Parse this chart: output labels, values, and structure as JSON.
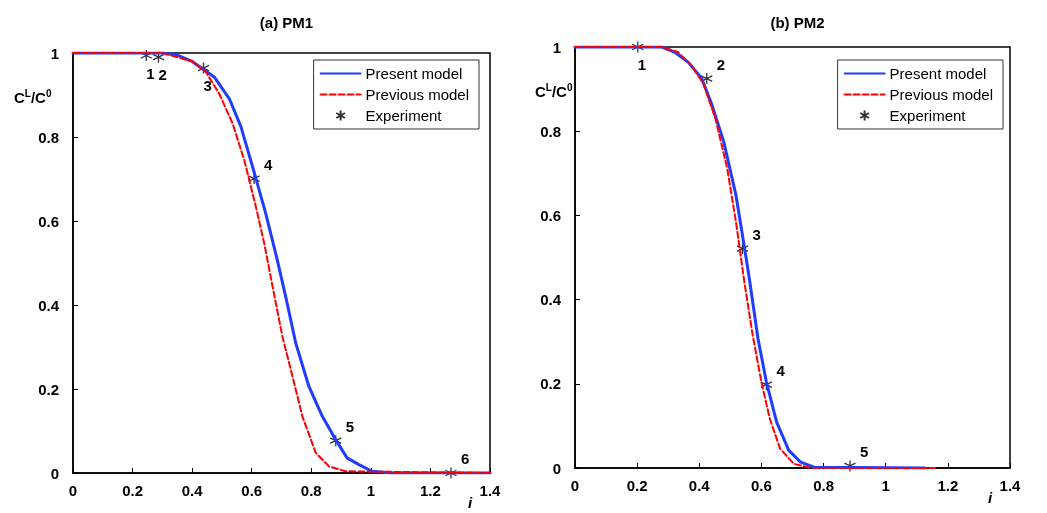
{
  "chart_data": [
    {
      "type": "line",
      "title": "(a) PM1",
      "xlabel": "i",
      "ylabel": "C$^{L}$/C$^{0}$",
      "xlim": [
        0,
        1.4
      ],
      "ylim": [
        0,
        1
      ],
      "xticks": [
        0,
        0.2,
        0.4,
        0.6,
        0.8,
        1,
        1.2,
        1.4
      ],
      "yticks": [
        0,
        0.2,
        0.4,
        0.6,
        0.8,
        1
      ],
      "grid": false,
      "legend": "top right",
      "series": [
        {
          "name": "Present model",
          "color": "#1f3cff",
          "line_style": "solid",
          "marker": "none",
          "x": [
            0,
            0.3,
            0.35,
            0.4,
            0.474,
            0.525,
            0.564,
            0.603,
            0.647,
            0.686,
            0.714,
            0.748,
            0.792,
            0.837,
            0.882,
            0.92,
            0.96,
            1.004,
            1.07,
            1.4
          ],
          "values": [
            1,
            1,
            0.995,
            0.98,
            0.943,
            0.891,
            0.824,
            0.729,
            0.618,
            0.507,
            0.42,
            0.309,
            0.206,
            0.135,
            0.079,
            0.036,
            0.02,
            0.004,
            0,
            0
          ]
        },
        {
          "name": "Previous model",
          "color": "#ff0000",
          "line_style": "dashed",
          "marker": "none",
          "x": [
            0,
            0.3,
            0.4,
            0.446,
            0.491,
            0.536,
            0.575,
            0.614,
            0.642,
            0.67,
            0.703,
            0.737,
            0.77,
            0.815,
            0.859,
            0.915,
            1.4
          ],
          "values": [
            1,
            1,
            0.98,
            0.955,
            0.903,
            0.832,
            0.745,
            0.634,
            0.547,
            0.444,
            0.325,
            0.23,
            0.135,
            0.048,
            0.016,
            0.004,
            0
          ]
        },
        {
          "name": "Experiment",
          "type": "scatter",
          "color": "#000000",
          "marker": "cross",
          "x": [
            0.246,
            0.287,
            0.438,
            0.608,
            0.882,
            1.269
          ],
          "values": [
            0.994,
            0.99,
            0.964,
            0.701,
            0.077,
            0
          ]
        }
      ],
      "annotations": [
        {
          "text": "1",
          "x": 0.246,
          "y": 0.994
        },
        {
          "text": "2",
          "x": 0.287,
          "y": 0.99
        },
        {
          "text": "3",
          "x": 0.438,
          "y": 0.964
        },
        {
          "text": "4",
          "x": 0.608,
          "y": 0.701
        },
        {
          "text": "5",
          "x": 0.882,
          "y": 0.077
        },
        {
          "text": "6",
          "x": 1.269,
          "y": 0
        }
      ]
    },
    {
      "type": "line",
      "title": "(b) PM2",
      "xlabel": "i",
      "ylabel": "C$^{L}$/C$^{0}$",
      "xlim": [
        0,
        1.4
      ],
      "ylim": [
        0,
        1
      ],
      "xticks": [
        0,
        0.2,
        0.4,
        0.6,
        0.8,
        1,
        1.2,
        1.4
      ],
      "yticks": [
        0,
        0.2,
        0.4,
        0.6,
        0.8,
        1
      ],
      "grid": false,
      "legend": "top right",
      "series": [
        {
          "name": "Present model",
          "color": "#1f3cff",
          "line_style": "solid",
          "marker": "none",
          "x": [
            0,
            0.28,
            0.32,
            0.364,
            0.408,
            0.441,
            0.479,
            0.518,
            0.539,
            0.561,
            0.589,
            0.616,
            0.649,
            0.688,
            0.726,
            0.77,
            1.126
          ],
          "values": [
            1,
            1,
            0.988,
            0.964,
            0.925,
            0.862,
            0.774,
            0.648,
            0.553,
            0.45,
            0.307,
            0.204,
            0.109,
            0.042,
            0.014,
            0.002,
            0
          ]
        },
        {
          "name": "Previous model",
          "color": "#ff0000",
          "line_style": "dashed",
          "marker": "none",
          "x": [
            0,
            0.28,
            0.331,
            0.375,
            0.413,
            0.452,
            0.49,
            0.518,
            0.545,
            0.572,
            0.6,
            0.627,
            0.66,
            0.704,
            0.759,
            1.17
          ],
          "values": [
            1,
            1,
            0.988,
            0.956,
            0.913,
            0.83,
            0.711,
            0.585,
            0.442,
            0.315,
            0.204,
            0.117,
            0.046,
            0.01,
            0,
            0
          ]
        },
        {
          "name": "Experiment",
          "type": "scatter",
          "color": "#000000",
          "marker": "cross",
          "x": [
            0.202,
            0.424,
            0.539,
            0.616,
            0.885
          ],
          "values": [
            1,
            0.925,
            0.521,
            0.198,
            0.005
          ]
        }
      ],
      "annotations": [
        {
          "text": "1",
          "x": 0.202,
          "y": 1
        },
        {
          "text": "2",
          "x": 0.424,
          "y": 0.925
        },
        {
          "text": "3",
          "x": 0.539,
          "y": 0.521
        },
        {
          "text": "4",
          "x": 0.616,
          "y": 0.198
        },
        {
          "text": "5",
          "x": 0.885,
          "y": 0.005
        }
      ]
    }
  ]
}
